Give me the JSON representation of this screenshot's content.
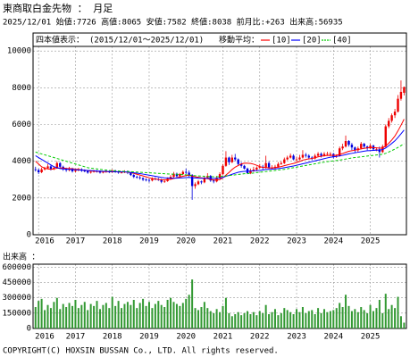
{
  "chart_data": [
    {
      "type": "candlestick",
      "title": "東商取白金先物 ： 月足",
      "subtitle": "2025/12/01 始値:7726 高値:8065 安値:7582 終値:8038 前月比:+263 出来高:56935",
      "quote_label": "四本値表示：",
      "period": "(2015/12/01〜2025/12/01)",
      "ma_label": "移動平均：",
      "up_color": "#ee0000",
      "down_color": "#0000dd",
      "xlim": [
        2015.85,
        2025.98
      ],
      "xticks": [
        2016,
        2017,
        2018,
        2019,
        2020,
        2021,
        2022,
        2023,
        2024,
        2025
      ],
      "ylim": [
        0,
        10250
      ],
      "yticks": [
        0,
        2000,
        4000,
        6000,
        8000,
        10000
      ],
      "grid": true,
      "x": [
        2015.917,
        2016.0,
        2016.083,
        2016.167,
        2016.25,
        2016.333,
        2016.417,
        2016.5,
        2016.583,
        2016.667,
        2016.75,
        2016.833,
        2016.917,
        2017.0,
        2017.083,
        2017.167,
        2017.25,
        2017.333,
        2017.417,
        2017.5,
        2017.583,
        2017.667,
        2017.75,
        2017.833,
        2017.917,
        2018.0,
        2018.083,
        2018.167,
        2018.25,
        2018.333,
        2018.417,
        2018.5,
        2018.583,
        2018.667,
        2018.75,
        2018.833,
        2018.917,
        2019.0,
        2019.083,
        2019.167,
        2019.25,
        2019.333,
        2019.417,
        2019.5,
        2019.583,
        2019.667,
        2019.75,
        2019.833,
        2019.917,
        2020.0,
        2020.083,
        2020.167,
        2020.25,
        2020.333,
        2020.417,
        2020.5,
        2020.583,
        2020.667,
        2020.75,
        2020.833,
        2020.917,
        2021.0,
        2021.083,
        2021.167,
        2021.25,
        2021.333,
        2021.417,
        2021.5,
        2021.583,
        2021.667,
        2021.75,
        2021.833,
        2021.917,
        2022.0,
        2022.083,
        2022.167,
        2022.25,
        2022.333,
        2022.417,
        2022.5,
        2022.583,
        2022.667,
        2022.75,
        2022.833,
        2022.917,
        2023.0,
        2023.083,
        2023.167,
        2023.25,
        2023.333,
        2023.417,
        2023.5,
        2023.583,
        2023.667,
        2023.75,
        2023.833,
        2023.917,
        2024.0,
        2024.083,
        2024.167,
        2024.25,
        2024.333,
        2024.417,
        2024.5,
        2024.583,
        2024.667,
        2024.75,
        2024.833,
        2024.917,
        2025.0,
        2025.083,
        2025.167,
        2025.25,
        2025.333,
        2025.417,
        2025.5,
        2025.583,
        2025.667,
        2025.75,
        2025.833,
        2025.917
      ],
      "open": [
        3560,
        3520,
        3400,
        3560,
        3620,
        3720,
        3580,
        3650,
        3900,
        3700,
        3560,
        3520,
        3600,
        3450,
        3500,
        3560,
        3480,
        3470,
        3380,
        3420,
        3460,
        3440,
        3380,
        3420,
        3450,
        3400,
        3480,
        3420,
        3380,
        3400,
        3450,
        3380,
        3250,
        3150,
        3120,
        3080,
        3000,
        2980,
        2950,
        3050,
        3020,
        3000,
        2880,
        2920,
        3050,
        3150,
        3320,
        3180,
        3300,
        3420,
        3380,
        3250,
        2650,
        2750,
        2900,
        2850,
        3100,
        3200,
        2950,
        2900,
        3100,
        3300,
        3750,
        4200,
        3950,
        4200,
        4100,
        3850,
        3750,
        3600,
        3350,
        3500,
        3550,
        3650,
        3700,
        3650,
        3900,
        3650,
        3650,
        3700,
        3850,
        3900,
        4100,
        4200,
        4300,
        4100,
        4100,
        4200,
        4350,
        4300,
        4200,
        4150,
        4300,
        4400,
        4300,
        4400,
        4400,
        4400,
        4250,
        4300,
        4700,
        4800,
        5100,
        4900,
        4750,
        4600,
        4700,
        4950,
        4800,
        4700,
        4850,
        4650,
        4650,
        4500,
        4800,
        5900,
        6200,
        6500,
        6700,
        7400,
        7726
      ],
      "high": [
        3700,
        3600,
        3650,
        3700,
        3850,
        3800,
        3720,
        4000,
        3950,
        3760,
        3650,
        3700,
        3650,
        3580,
        3640,
        3620,
        3560,
        3500,
        3480,
        3530,
        3520,
        3500,
        3480,
        3520,
        3500,
        3560,
        3530,
        3480,
        3460,
        3510,
        3500,
        3420,
        3300,
        3220,
        3200,
        3130,
        3080,
        3050,
        3120,
        3130,
        3100,
        3050,
        3000,
        3120,
        3250,
        3420,
        3380,
        3360,
        3500,
        3600,
        3500,
        3300,
        2850,
        2980,
        2950,
        3200,
        3350,
        3250,
        3000,
        3200,
        3400,
        3850,
        4550,
        4250,
        4350,
        4400,
        4150,
        3950,
        3800,
        3650,
        3600,
        3700,
        3720,
        3850,
        3800,
        4300,
        4000,
        3780,
        3800,
        3950,
        4000,
        4200,
        4300,
        4420,
        4380,
        4250,
        4350,
        4600,
        4450,
        4380,
        4280,
        4400,
        4500,
        4480,
        4500,
        4520,
        4500,
        4450,
        4380,
        4800,
        4950,
        5400,
        5150,
        5000,
        4800,
        4800,
        5050,
        5000,
        4850,
        4950,
        4900,
        4750,
        4800,
        4900,
        6000,
        6350,
        6600,
        6850,
        7600,
        8400,
        8065
      ],
      "low": [
        3440,
        3300,
        3350,
        3500,
        3580,
        3500,
        3520,
        3620,
        3650,
        3480,
        3420,
        3450,
        3380,
        3400,
        3450,
        3420,
        3400,
        3320,
        3330,
        3380,
        3380,
        3330,
        3340,
        3370,
        3350,
        3360,
        3370,
        3320,
        3330,
        3350,
        3300,
        3200,
        3080,
        3050,
        3000,
        2920,
        2900,
        2850,
        2900,
        2960,
        2930,
        2800,
        2820,
        2880,
        3000,
        3100,
        3120,
        3150,
        3250,
        3300,
        3150,
        1900,
        2500,
        2700,
        2750,
        2800,
        3050,
        2880,
        2800,
        2850,
        3050,
        3250,
        3700,
        3800,
        3900,
        4000,
        3750,
        3650,
        3550,
        3300,
        3300,
        3420,
        3450,
        3600,
        3550,
        3600,
        3600,
        3550,
        3550,
        3650,
        3800,
        3850,
        4050,
        4150,
        4050,
        3980,
        4050,
        4150,
        4200,
        4100,
        4050,
        4100,
        4250,
        4200,
        4250,
        4300,
        4280,
        4150,
        4180,
        4250,
        4600,
        4750,
        4800,
        4600,
        4450,
        4500,
        4650,
        4700,
        4600,
        4650,
        4600,
        4550,
        4200,
        4450,
        4750,
        5800,
        6100,
        6350,
        6650,
        7300,
        7582
      ],
      "close": [
        3520,
        3400,
        3560,
        3620,
        3720,
        3580,
        3650,
        3900,
        3700,
        3560,
        3520,
        3600,
        3450,
        3500,
        3560,
        3480,
        3470,
        3380,
        3420,
        3460,
        3440,
        3380,
        3420,
        3450,
        3400,
        3480,
        3420,
        3380,
        3400,
        3450,
        3380,
        3250,
        3150,
        3120,
        3080,
        3000,
        2980,
        2950,
        3050,
        3020,
        3000,
        2880,
        2920,
        3050,
        3150,
        3320,
        3180,
        3300,
        3420,
        3380,
        3250,
        2650,
        2750,
        2900,
        2850,
        3100,
        3200,
        2950,
        2900,
        3100,
        3300,
        3750,
        4200,
        3950,
        4200,
        4100,
        3850,
        3750,
        3600,
        3350,
        3500,
        3550,
        3650,
        3700,
        3650,
        3900,
        3650,
        3650,
        3700,
        3850,
        3900,
        4100,
        4200,
        4300,
        4100,
        4100,
        4200,
        4350,
        4300,
        4200,
        4150,
        4300,
        4400,
        4300,
        4400,
        4400,
        4400,
        4250,
        4300,
        4700,
        4800,
        5100,
        4900,
        4750,
        4600,
        4700,
        4950,
        4800,
        4700,
        4850,
        4650,
        4650,
        4500,
        4800,
        5900,
        6200,
        6500,
        6700,
        7400,
        7775,
        8038
      ],
      "series": [
        {
          "name": "[10]",
          "color": "#ff0000",
          "style": "solid",
          "values": [
            4000,
            3850,
            3700,
            3620,
            3580,
            3560,
            3580,
            3620,
            3640,
            3630,
            3610,
            3600,
            3590,
            3570,
            3550,
            3530,
            3510,
            3490,
            3470,
            3460,
            3450,
            3450,
            3440,
            3430,
            3430,
            3430,
            3430,
            3420,
            3420,
            3420,
            3400,
            3380,
            3340,
            3290,
            3250,
            3200,
            3150,
            3100,
            3060,
            3030,
            3010,
            2990,
            2990,
            3000,
            3020,
            3060,
            3100,
            3140,
            3180,
            3220,
            3240,
            3190,
            3150,
            3130,
            3100,
            3080,
            3050,
            3010,
            2980,
            2980,
            3000,
            3100,
            3250,
            3390,
            3550,
            3680,
            3770,
            3850,
            3900,
            3890,
            3880,
            3840,
            3780,
            3710,
            3660,
            3660,
            3640,
            3640,
            3650,
            3680,
            3710,
            3760,
            3800,
            3840,
            3880,
            3930,
            3990,
            4060,
            4100,
            4130,
            4150,
            4190,
            4240,
            4270,
            4300,
            4310,
            4320,
            4320,
            4330,
            4370,
            4420,
            4480,
            4540,
            4570,
            4600,
            4640,
            4670,
            4700,
            4730,
            4740,
            4740,
            4730,
            4710,
            4720,
            4830,
            4980,
            5160,
            5370,
            5650,
            5960,
            6290
          ]
        },
        {
          "name": "[20]",
          "color": "#0000ff",
          "style": "solid",
          "values": [
            4300,
            4200,
            4100,
            4000,
            3900,
            3800,
            3700,
            3650,
            3600,
            3580,
            3570,
            3560,
            3550,
            3540,
            3530,
            3520,
            3510,
            3500,
            3490,
            3480,
            3470,
            3460,
            3450,
            3450,
            3440,
            3440,
            3430,
            3430,
            3420,
            3420,
            3410,
            3390,
            3370,
            3350,
            3330,
            3300,
            3270,
            3240,
            3210,
            3180,
            3150,
            3120,
            3100,
            3090,
            3080,
            3080,
            3080,
            3090,
            3100,
            3110,
            3120,
            3100,
            3090,
            3080,
            3070,
            3070,
            3070,
            3060,
            3060,
            3070,
            3080,
            3120,
            3180,
            3230,
            3290,
            3350,
            3400,
            3430,
            3450,
            3460,
            3470,
            3480,
            3490,
            3500,
            3520,
            3550,
            3560,
            3570,
            3580,
            3600,
            3620,
            3650,
            3680,
            3710,
            3740,
            3780,
            3820,
            3860,
            3900,
            3940,
            3980,
            4020,
            4060,
            4100,
            4140,
            4180,
            4220,
            4240,
            4260,
            4290,
            4320,
            4360,
            4400,
            4430,
            4460,
            4490,
            4520,
            4550,
            4570,
            4580,
            4590,
            4600,
            4610,
            4630,
            4720,
            4840,
            4970,
            5110,
            5290,
            5490,
            5700
          ]
        },
        {
          "name": "[40]",
          "color": "#00cc00",
          "style": "dashed",
          "values": [
            4500,
            4450,
            4400,
            4350,
            4300,
            4250,
            4200,
            4150,
            4100,
            4050,
            4000,
            3950,
            3900,
            3850,
            3800,
            3750,
            3700,
            3650,
            3620,
            3600,
            3580,
            3560,
            3540,
            3520,
            3500,
            3490,
            3480,
            3470,
            3460,
            3450,
            3440,
            3430,
            3420,
            3410,
            3400,
            3390,
            3380,
            3370,
            3360,
            3350,
            3340,
            3330,
            3320,
            3310,
            3300,
            3300,
            3290,
            3280,
            3270,
            3260,
            3250,
            3230,
            3210,
            3200,
            3190,
            3180,
            3170,
            3160,
            3160,
            3160,
            3170,
            3180,
            3200,
            3220,
            3240,
            3260,
            3280,
            3300,
            3320,
            3330,
            3340,
            3360,
            3380,
            3400,
            3420,
            3440,
            3460,
            3480,
            3500,
            3520,
            3540,
            3560,
            3590,
            3620,
            3650,
            3680,
            3710,
            3740,
            3770,
            3800,
            3830,
            3860,
            3890,
            3920,
            3950,
            3980,
            4000,
            4020,
            4040,
            4060,
            4090,
            4120,
            4150,
            4180,
            4200,
            4220,
            4240,
            4260,
            4280,
            4300,
            4320,
            4340,
            4360,
            4380,
            4430,
            4500,
            4580,
            4660,
            4750,
            4850,
            4950
          ]
        }
      ]
    },
    {
      "type": "bar",
      "title": "出来高 ：",
      "color": "#339933",
      "xlim": [
        2015.85,
        2025.98
      ],
      "xticks": [
        2016,
        2017,
        2018,
        2019,
        2020,
        2021,
        2022,
        2023,
        2024,
        2025
      ],
      "ylim": [
        0,
        630000
      ],
      "yticks": [
        0,
        150000,
        300000,
        450000,
        600000
      ],
      "grid": true,
      "values": [
        210000,
        270000,
        290000,
        180000,
        230000,
        200000,
        260000,
        300000,
        190000,
        240000,
        210000,
        250000,
        220000,
        280000,
        200000,
        230000,
        260000,
        180000,
        240000,
        220000,
        270000,
        190000,
        230000,
        250000,
        200000,
        310000,
        220000,
        270000,
        200000,
        240000,
        260000,
        230000,
        280000,
        200000,
        250000,
        290000,
        220000,
        260000,
        200000,
        240000,
        270000,
        230000,
        210000,
        280000,
        300000,
        260000,
        240000,
        220000,
        250000,
        290000,
        330000,
        480000,
        200000,
        180000,
        210000,
        260000,
        200000,
        170000,
        150000,
        190000,
        160000,
        220000,
        300000,
        150000,
        120000,
        140000,
        160000,
        130000,
        150000,
        170000,
        140000,
        160000,
        130000,
        170000,
        150000,
        230000,
        140000,
        160000,
        190000,
        130000,
        150000,
        200000,
        180000,
        160000,
        140000,
        190000,
        160000,
        210000,
        150000,
        170000,
        180000,
        140000,
        200000,
        150000,
        190000,
        160000,
        170000,
        180000,
        200000,
        250000,
        210000,
        330000,
        220000,
        170000,
        190000,
        160000,
        210000,
        180000,
        150000,
        230000,
        170000,
        200000,
        280000,
        150000,
        340000,
        190000,
        230000,
        200000,
        310000,
        120000,
        56935
      ]
    }
  ],
  "footer": "COPYRIGHT(C) HOXSIN BUSSAN Co., LTD. All rights reserved."
}
